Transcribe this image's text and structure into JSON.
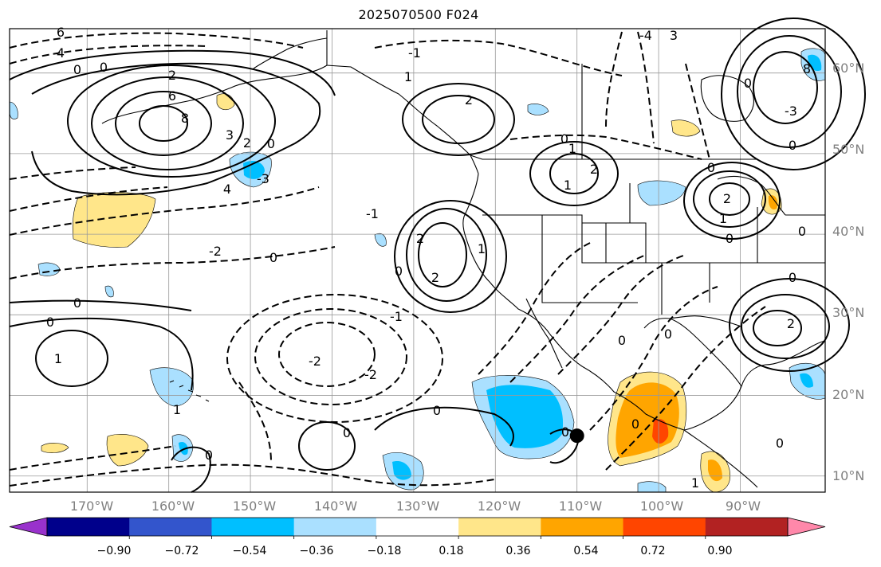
{
  "title": "2025070500 F024",
  "lon_labels": [
    "170°W",
    "160°W",
    "150°W",
    "140°W",
    "130°W",
    "120°W",
    "110°W",
    "100°W",
    "90°W"
  ],
  "lat_labels": [
    "60°N",
    "50°N",
    "40°N",
    "30°N",
    "20°N",
    "10°N"
  ],
  "colorbar": {
    "ticks": [
      "−0.90",
      "−0.72",
      "−0.54",
      "−0.36",
      "−0.18",
      "0.18",
      "0.36",
      "0.54",
      "0.72",
      "0.90"
    ],
    "colors": [
      "#9932cc",
      "#00008b",
      "#3355cc",
      "#00bfff",
      "#aae0ff",
      "#ffffff",
      "#ffe68a",
      "#ffa500",
      "#ff4500",
      "#b22222",
      "#ff88aa"
    ]
  },
  "contour_labels": [
    "0",
    "1",
    "2",
    "3",
    "4",
    "6",
    "8",
    "-1",
    "-2",
    "-3",
    "-4"
  ],
  "marker": {
    "lon": -110,
    "lat": 15
  }
}
